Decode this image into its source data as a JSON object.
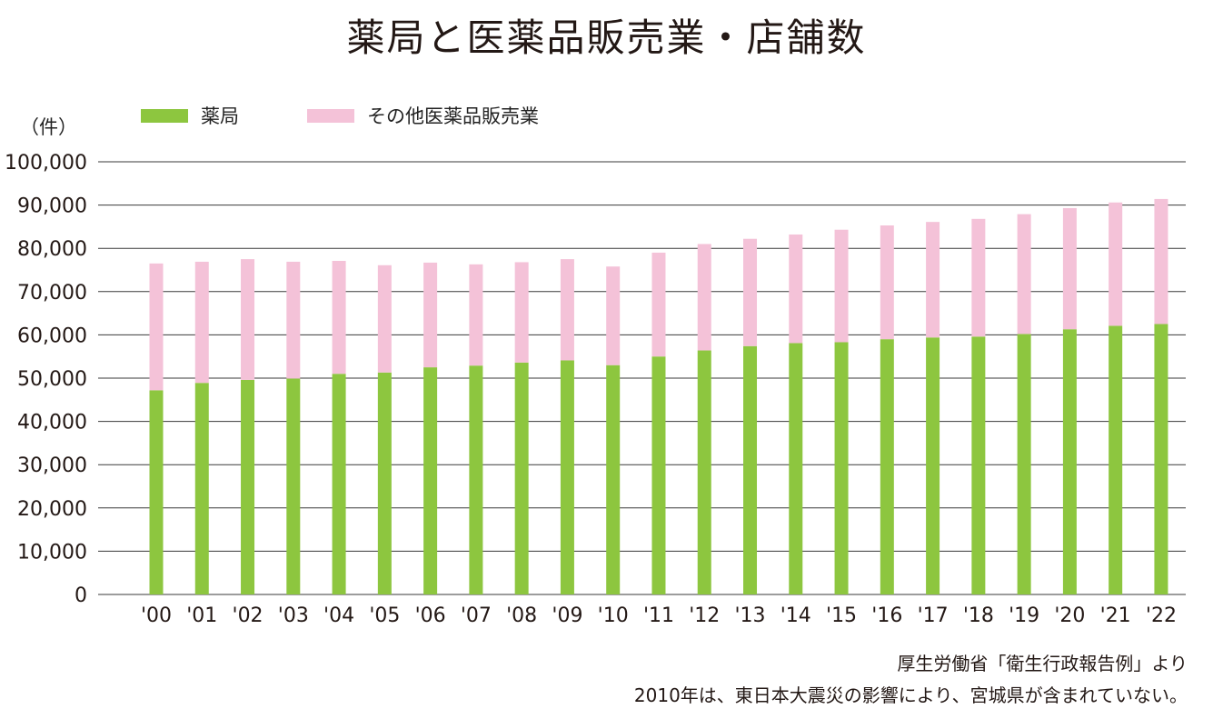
{
  "title": "薬局と医薬品販売業・店舗数",
  "colors": {
    "pharmacy": "#8dc63f",
    "other": "#f4c2d8",
    "grid": "#3a3a3a",
    "text": "#231815"
  },
  "notes": {
    "source": "厚生労働省「衛生行政報告例」より",
    "footnote": "2010年は、東日本大震災の影響により、宮城県が含まれていない。"
  },
  "chart_data": {
    "type": "bar",
    "stacked": true,
    "title": "薬局と医薬品販売業・店舗数",
    "ylabel": "（件）",
    "xlabel": "",
    "ylim": [
      0,
      100000
    ],
    "yticks": [
      0,
      10000,
      20000,
      30000,
      40000,
      50000,
      60000,
      70000,
      80000,
      90000,
      100000
    ],
    "ytick_labels": [
      "0",
      "10,000",
      "20,000",
      "30,000",
      "40,000",
      "50,000",
      "60,000",
      "70,000",
      "80,000",
      "90,000",
      "100,000"
    ],
    "grid": true,
    "legend_position": "top-left",
    "categories": [
      "'00",
      "'01",
      "'02",
      "'03",
      "'04",
      "'05",
      "'06",
      "'07",
      "'08",
      "'09",
      "'10",
      "'11",
      "'12",
      "'13",
      "'14",
      "'15",
      "'16",
      "'17",
      "'18",
      "'19",
      "'20",
      "'21",
      "'22"
    ],
    "series": [
      {
        "name": "薬局",
        "color": "#8dc63f",
        "values": [
          47200,
          48900,
          49600,
          49900,
          51000,
          51300,
          52500,
          52900,
          53600,
          54100,
          53000,
          55000,
          56400,
          57400,
          58100,
          58300,
          59000,
          59400,
          59600,
          60200,
          61300,
          62100,
          62500
        ]
      },
      {
        "name": "その他医薬品販売業",
        "color": "#f4c2d8",
        "values": [
          29300,
          28000,
          27900,
          27000,
          26100,
          24800,
          24200,
          23400,
          23200,
          23400,
          22800,
          24000,
          24600,
          24800,
          25100,
          26000,
          26300,
          26700,
          27200,
          27700,
          28000,
          28500,
          28900
        ]
      }
    ]
  }
}
